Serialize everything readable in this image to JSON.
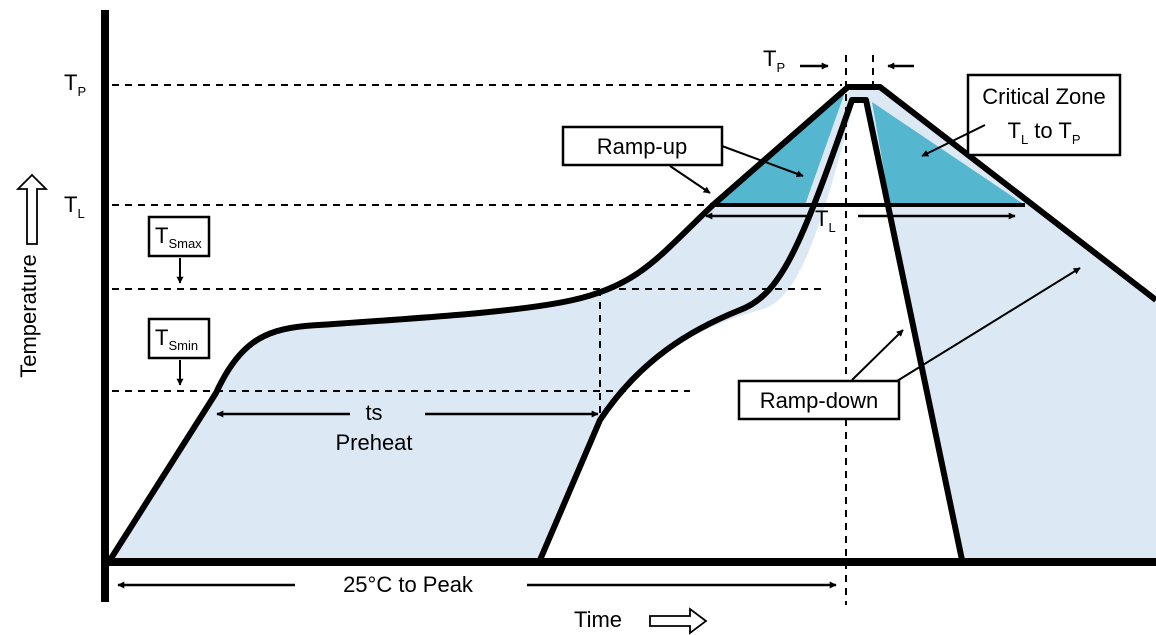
{
  "diagram": {
    "axes": {
      "y_label": "Temperature",
      "x_label": "Time"
    },
    "levels": {
      "tp": {
        "main": "T",
        "sub": "P"
      },
      "tl": {
        "main": "T",
        "sub": "L"
      }
    },
    "tsmax_box": {
      "main": "T",
      "sub": "Smax"
    },
    "tsmin_box": {
      "main": "T",
      "sub": "Smin"
    },
    "ramp_up_label": "Ramp-up",
    "ramp_down_label": "Ramp-down",
    "critical_zone": {
      "title": "Critical Zone",
      "line2_a": "T",
      "line2_a_sub": "L",
      "line2_mid": " to ",
      "line2_b": "T",
      "line2_b_sub": "P"
    },
    "tp_duration": {
      "main": "T",
      "sub": "P"
    },
    "tl_duration": {
      "main": "T",
      "sub": "L"
    },
    "preheat": {
      "line1": "ts",
      "line2": "Preheat"
    },
    "bottom_span_label": "25°C to Peak",
    "colors": {
      "light_fill": "#dce9f5",
      "critical_fill": "#55b6cf",
      "stroke": "#000000"
    }
  }
}
